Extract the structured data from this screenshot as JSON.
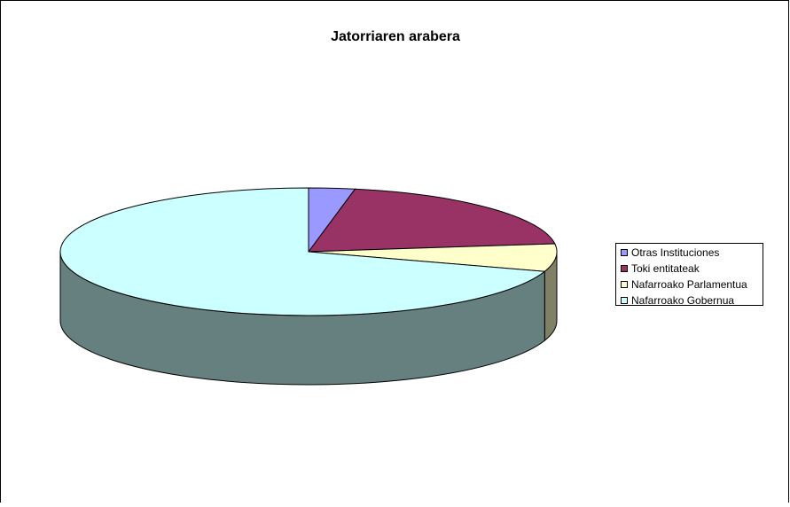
{
  "chart_data": {
    "type": "pie3d",
    "title": "Jatorriaren arabera",
    "categories": [
      "Otras Instituciones",
      "Toki entitateak",
      "Nafarroako Parlamentua",
      "Nafarroako Gobernua"
    ],
    "values": [
      3,
      20,
      7,
      70
    ],
    "colors": [
      "#9999ff",
      "#993366",
      "#ffffcc",
      "#ccffff"
    ],
    "legend": "right"
  }
}
